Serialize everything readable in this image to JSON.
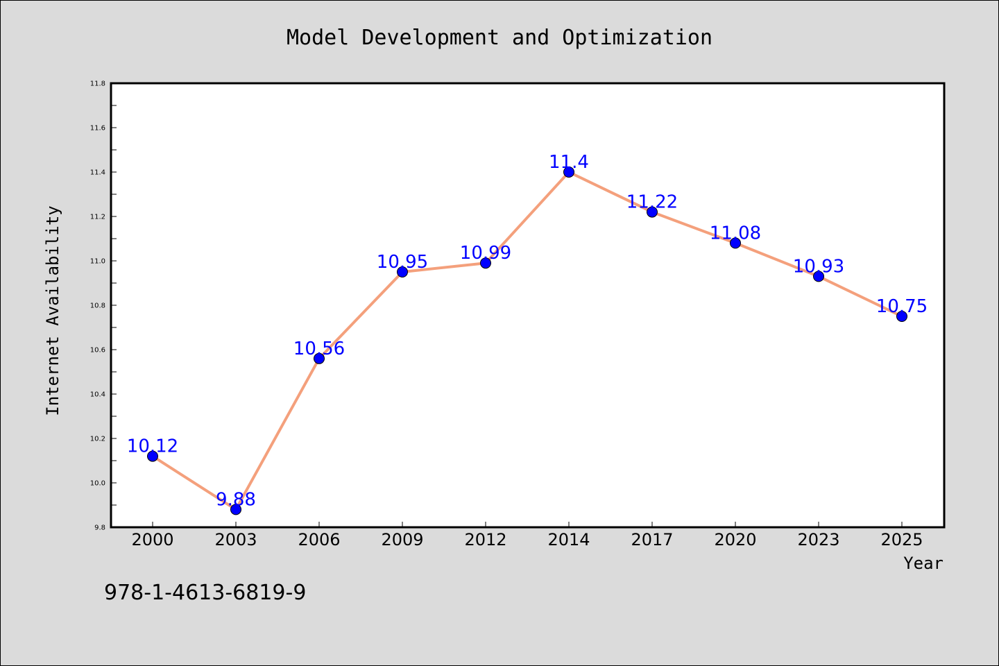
{
  "chart_data": {
    "type": "line",
    "title": "Model Development and Optimization",
    "xlabel": "Year",
    "ylabel": "Internet Availability",
    "categories": [
      "2000",
      "2003",
      "2006",
      "2009",
      "2012",
      "2014",
      "2017",
      "2020",
      "2023",
      "2025"
    ],
    "series": [
      {
        "values": [
          10.12,
          9.88,
          10.56,
          10.95,
          10.99,
          11.4,
          11.22,
          11.08,
          10.93,
          10.75
        ],
        "data_labels": [
          "10.12",
          "9.88",
          "10.56",
          "10.95",
          "10.99",
          "11.4",
          "11.22",
          "11.08",
          "10.93",
          "10.75"
        ]
      }
    ],
    "ylim": [
      9.8,
      11.8
    ],
    "yticks": [
      "9.8",
      "10.0",
      "10.2",
      "10.4",
      "10.6",
      "10.8",
      "11.0",
      "11.2",
      "11.4",
      "11.6",
      "11.8"
    ],
    "grid": false,
    "legend": "none",
    "colors": {
      "line": "#f4a07c",
      "marker": "#0000ff",
      "data_label": "#0000ff",
      "background": "#dbdbdb",
      "plot_background": "#ffffff"
    }
  },
  "annotation": {
    "isbn": "978-1-4613-6819-9"
  }
}
